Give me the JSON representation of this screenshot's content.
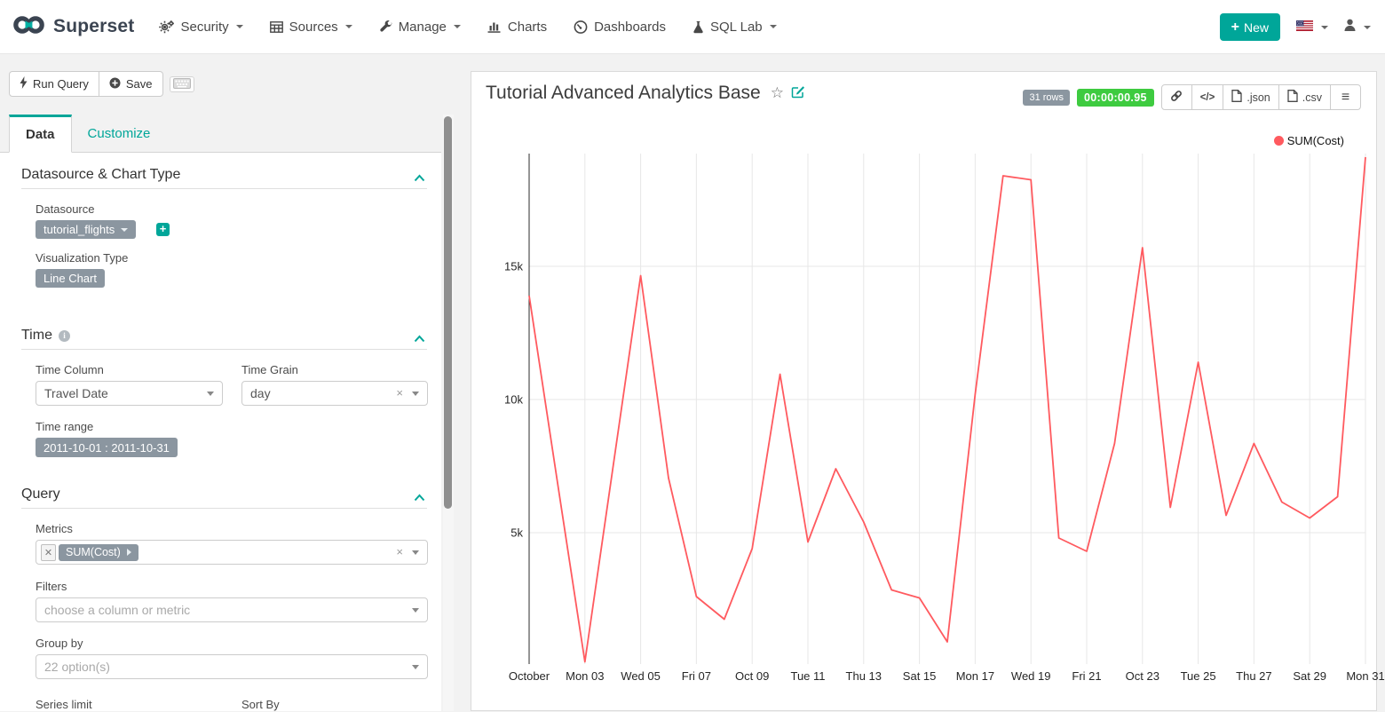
{
  "navbar": {
    "brand": "Superset",
    "menu": [
      {
        "label": "Security"
      },
      {
        "label": "Sources"
      },
      {
        "label": "Manage"
      },
      {
        "label": "Charts"
      },
      {
        "label": "Dashboards"
      },
      {
        "label": "SQL Lab"
      }
    ],
    "new_label": "New",
    "new_plus": "+"
  },
  "query_toolbar": {
    "run_query": "Run Query",
    "save": "Save"
  },
  "tabs": {
    "data": "Data",
    "customize": "Customize"
  },
  "panel": {
    "datasource_section": {
      "title": "Datasource & Chart Type",
      "datasource_label": "Datasource",
      "datasource_value": "tutorial_flights",
      "viz_label": "Visualization Type",
      "viz_value": "Line Chart"
    },
    "time_section": {
      "title": "Time",
      "time_column_label": "Time Column",
      "time_column_value": "Travel Date",
      "time_grain_label": "Time Grain",
      "time_grain_value": "day",
      "time_range_label": "Time range",
      "time_range_value": "2011-10-01 : 2011-10-31"
    },
    "query_section": {
      "title": "Query",
      "metrics_label": "Metrics",
      "metric_pill": "SUM(Cost)",
      "filters_label": "Filters",
      "filters_placeholder": "choose a column or metric",
      "groupby_label": "Group by",
      "groupby_placeholder": "22 option(s)",
      "series_limit_label": "Series limit",
      "sort_by_label": "Sort By"
    },
    "clear_x": "×"
  },
  "chart": {
    "title": "Tutorial Advanced Analytics Base",
    "star_glyph": "☆",
    "rows_badge": "31 rows",
    "timer": "00:00:00.95",
    "code_glyph": "</>",
    "export_json": ".json",
    "export_csv": ".csv",
    "menu_glyph": "≡",
    "legend_label": "SUM(Cost)"
  },
  "colors": {
    "accent_teal": "#00a699",
    "series_red": "#ff5a5f",
    "badge_gray": "#8b96a0",
    "timer_green": "#3ecb40"
  },
  "chart_data": {
    "type": "line",
    "title": "Tutorial Advanced Analytics Base",
    "xlabel": "",
    "ylabel": "",
    "x_domain": "2011-10-01 to 2011-10-31, daily grain",
    "ylim": [
      0,
      19400
    ],
    "grid": true,
    "legend_position": "top-right",
    "series": [
      {
        "name": "SUM(Cost)",
        "color": "#ff5a5f",
        "days": [
          1,
          2,
          3,
          4,
          5,
          6,
          7,
          8,
          9,
          10,
          11,
          12,
          13,
          14,
          15,
          16,
          17,
          18,
          19,
          20,
          21,
          22,
          23,
          24,
          25,
          26,
          27,
          28,
          29,
          30,
          31
        ],
        "values": [
          13900,
          7000,
          150,
          7400,
          14650,
          7050,
          2600,
          1750,
          4400,
          10950,
          4650,
          7400,
          5400,
          2850,
          2550,
          900,
          10200,
          18400,
          18250,
          4800,
          4300,
          8350,
          15700,
          5950,
          11400,
          5650,
          8350,
          6150,
          5550,
          6350,
          19100
        ]
      }
    ],
    "x_ticks": [
      {
        "day": 1,
        "label": "October"
      },
      {
        "day": 3,
        "label": "Mon 03"
      },
      {
        "day": 5,
        "label": "Wed 05"
      },
      {
        "day": 7,
        "label": "Fri 07"
      },
      {
        "day": 9,
        "label": "Oct 09"
      },
      {
        "day": 11,
        "label": "Tue 11"
      },
      {
        "day": 13,
        "label": "Thu 13"
      },
      {
        "day": 15,
        "label": "Sat 15"
      },
      {
        "day": 17,
        "label": "Mon 17"
      },
      {
        "day": 19,
        "label": "Wed 19"
      },
      {
        "day": 21,
        "label": "Fri 21"
      },
      {
        "day": 23,
        "label": "Oct 23"
      },
      {
        "day": 25,
        "label": "Tue 25"
      },
      {
        "day": 27,
        "label": "Thu 27"
      },
      {
        "day": 29,
        "label": "Sat 29"
      },
      {
        "day": 31,
        "label": "Mon 31"
      }
    ],
    "y_ticks": [
      {
        "value": 5000,
        "label": "5k"
      },
      {
        "value": 10000,
        "label": "10k"
      },
      {
        "value": 15000,
        "label": "15k"
      }
    ]
  }
}
